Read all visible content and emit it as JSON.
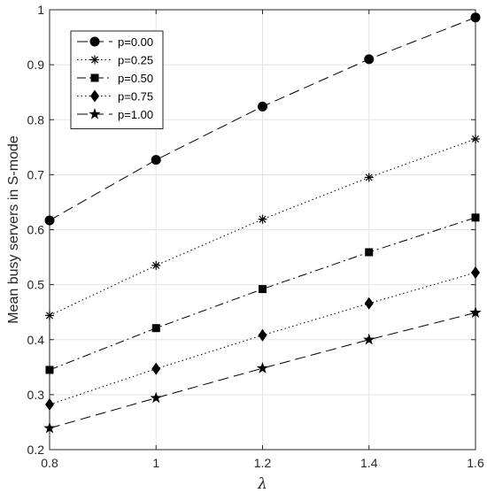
{
  "chart_data": {
    "type": "line",
    "xlabel": "λ",
    "ylabel": "Mean busy servers in S-mode",
    "xlim": [
      0.8,
      1.6
    ],
    "ylim": [
      0.2,
      1.0
    ],
    "xticks": [
      "0.8",
      "1",
      "1.2",
      "1.4",
      "1.6"
    ],
    "yticks": [
      "0.2",
      "0.3",
      "0.4",
      "0.5",
      "0.6",
      "0.7",
      "0.8",
      "0.9",
      "1"
    ],
    "grid": true,
    "legend_position": "top-left",
    "x": [
      0.8,
      1.0,
      1.2,
      1.4,
      1.6
    ],
    "series": [
      {
        "name": "p=0.00",
        "values": [
          0.617,
          0.727,
          0.824,
          0.91,
          0.986
        ],
        "marker": "circle",
        "line": "dashed"
      },
      {
        "name": "p=0.25",
        "values": [
          0.444,
          0.535,
          0.619,
          0.695,
          0.765
        ],
        "marker": "asterisk",
        "line": "dotted"
      },
      {
        "name": "p=0.50",
        "values": [
          0.345,
          0.421,
          0.492,
          0.559,
          0.622
        ],
        "marker": "square",
        "line": "dashdot"
      },
      {
        "name": "p=0.75",
        "values": [
          0.282,
          0.347,
          0.408,
          0.466,
          0.522
        ],
        "marker": "diamond",
        "line": "dotted"
      },
      {
        "name": "p=1.00",
        "values": [
          0.239,
          0.294,
          0.348,
          0.4,
          0.449
        ],
        "marker": "star",
        "line": "dashed"
      }
    ]
  }
}
